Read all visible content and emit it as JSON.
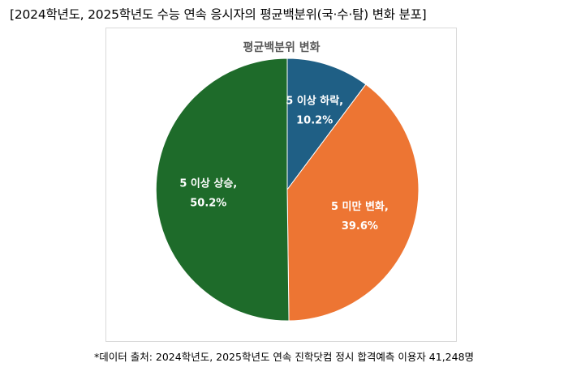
{
  "header": {
    "title": "[2024학년도, 2025학년도 수능 연속 응시자의 평균백분위(국·수·탐) 변화 분포]"
  },
  "chart_data": {
    "type": "pie",
    "title": "평균백분위 변화",
    "slices": [
      {
        "label": "5 이상 하락,",
        "value": 10.2,
        "value_label": "10.2%",
        "color": "#1f5f85"
      },
      {
        "label": "5 미만 변화,",
        "value": 39.6,
        "value_label": "39.6%",
        "color": "#ed7533"
      },
      {
        "label": "5 이상 상승,",
        "value": 50.2,
        "value_label": "50.2%",
        "color": "#1e6b2a"
      }
    ],
    "start": "12 o'clock",
    "direction": "clockwise",
    "legend": "none"
  },
  "footer": {
    "note": "*데이터 출처: 2024학년도, 2025학년도 연속 진학닷컴 정시 합격예측 이용자 41,248명"
  }
}
